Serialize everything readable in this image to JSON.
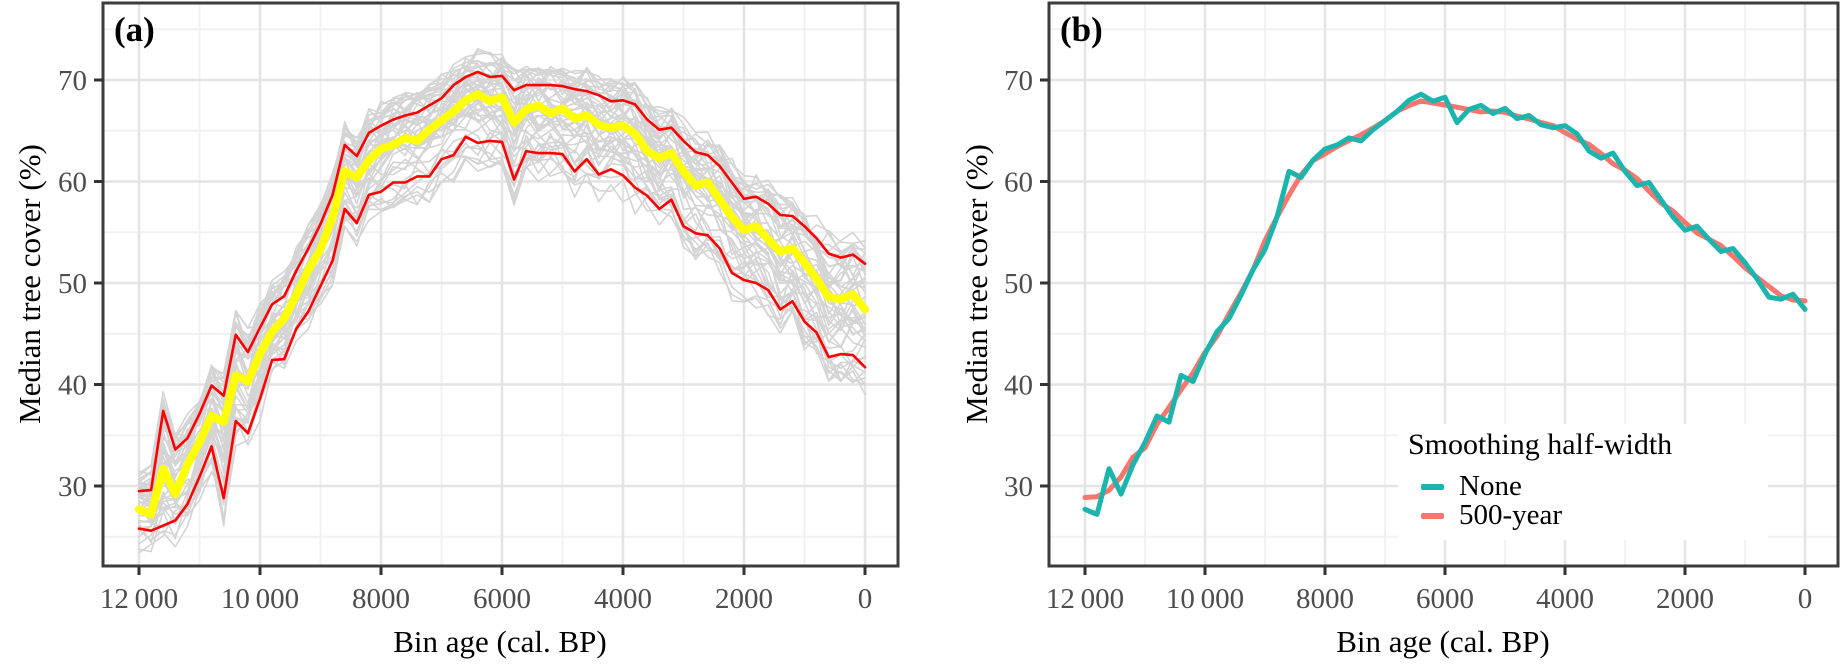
{
  "panels": {
    "a": {
      "label": "(a)"
    },
    "b": {
      "label": "(b)"
    }
  },
  "axes": {
    "y_title": "Median tree cover (%)",
    "x_title": "Bin age (cal. BP)",
    "x_ticks": [
      {
        "value": 12000,
        "label": "12 000"
      },
      {
        "value": 10000,
        "label": "10 000"
      },
      {
        "value": 8000,
        "label": "8000"
      },
      {
        "value": 6000,
        "label": "6000"
      },
      {
        "value": 4000,
        "label": "4000"
      },
      {
        "value": 2000,
        "label": "2000"
      },
      {
        "value": 0,
        "label": "0"
      }
    ],
    "y_ticks": [
      30,
      40,
      50,
      60,
      70
    ],
    "y_minor": [
      25,
      35,
      45,
      55,
      65,
      75
    ],
    "x_minor": [
      11000,
      9000,
      7000,
      5000,
      3000,
      1000
    ]
  },
  "legend": {
    "title": "Smoothing half-width",
    "items": [
      {
        "label": "None",
        "color": "#1CB5AD"
      },
      {
        "label": "500-year",
        "color": "#F8766D"
      }
    ]
  },
  "colors": {
    "median": "#FFFF00",
    "envelope": "#FF0000",
    "ensemble": "#D4D4D4",
    "raw": "#1CB5AD",
    "smoothed": "#F8766D",
    "grid_major": "#E4E4E4",
    "grid_minor": "#F1F1F1",
    "panel_border": "#3C3C3C",
    "tick_mark": "#333333",
    "tick_text": "#4D4D4D"
  },
  "chart_data": [
    {
      "type": "line",
      "panel": "a",
      "title": "(a)",
      "xlabel": "Bin age (cal. BP)",
      "ylabel": "Median tree cover (%)",
      "x_axis_reversed": true,
      "xlim": [
        12600,
        -550
      ],
      "ylim": [
        22.3,
        77.6
      ],
      "grid": true,
      "bin_ages": [
        12000,
        11800,
        11600,
        11400,
        11200,
        11000,
        10800,
        10600,
        10400,
        10200,
        10000,
        9800,
        9600,
        9400,
        9200,
        9000,
        8800,
        8600,
        8400,
        8200,
        8000,
        7800,
        7600,
        7400,
        7200,
        7000,
        6800,
        6600,
        6400,
        6200,
        6000,
        5800,
        5600,
        5400,
        5200,
        5000,
        4800,
        4600,
        4400,
        4200,
        4000,
        3800,
        3600,
        3400,
        3200,
        3000,
        2800,
        2600,
        2400,
        2200,
        2000,
        1800,
        1600,
        1400,
        1200,
        1000,
        800,
        600,
        400,
        200,
        0
      ],
      "series": [
        {
          "name": "median",
          "color": "#FFFF00",
          "values": [
            27.7,
            27.2,
            31.7,
            29.2,
            32.1,
            34.3,
            36.9,
            36.3,
            40.9,
            40.3,
            43.0,
            45.2,
            46.5,
            48.8,
            51.3,
            53.3,
            56.5,
            61.0,
            60.4,
            62.1,
            63.2,
            63.6,
            64.3,
            64.0,
            65.1,
            66.0,
            66.9,
            68.0,
            68.6,
            67.9,
            68.3,
            65.8,
            67.1,
            67.5,
            66.7,
            67.2,
            66.2,
            66.5,
            65.6,
            65.3,
            65.5,
            64.7,
            63.0,
            62.3,
            62.8,
            61.0,
            59.6,
            59.9,
            58.2,
            56.5,
            55.2,
            55.6,
            54.3,
            53.1,
            53.4,
            52.0,
            50.4,
            48.6,
            48.4,
            48.9,
            47.4
          ]
        },
        {
          "name": "upper envelope",
          "color": "#FF0000",
          "values": [
            29.5,
            29.6,
            37.4,
            33.6,
            34.7,
            37.1,
            39.9,
            38.9,
            44.9,
            43.2,
            45.6,
            47.9,
            48.7,
            51.2,
            53.4,
            55.8,
            58.7,
            63.6,
            62.5,
            64.8,
            65.5,
            66.1,
            66.5,
            66.8,
            67.5,
            68.2,
            69.5,
            70.3,
            70.8,
            70.3,
            70.4,
            69.0,
            69.5,
            69.5,
            69.5,
            69.4,
            69.1,
            68.9,
            68.5,
            67.9,
            68.0,
            67.6,
            66.1,
            65.1,
            65.3,
            64.0,
            62.9,
            62.6,
            61.5,
            59.9,
            58.3,
            58.5,
            57.8,
            56.7,
            56.6,
            55.6,
            54.4,
            52.9,
            52.5,
            52.8,
            51.9
          ]
        },
        {
          "name": "lower envelope",
          "color": "#FF0000",
          "values": [
            25.8,
            25.6,
            26.1,
            26.6,
            28.2,
            30.9,
            33.9,
            28.8,
            36.4,
            35.2,
            38.6,
            42.4,
            42.5,
            45.5,
            47.2,
            49.7,
            52.2,
            57.3,
            55.9,
            58.7,
            59.0,
            59.9,
            59.9,
            60.5,
            60.5,
            62.2,
            62.6,
            64.4,
            63.8,
            64.0,
            63.9,
            60.2,
            63.0,
            62.8,
            62.8,
            62.7,
            61.0,
            62.2,
            60.7,
            61.2,
            60.6,
            59.4,
            58.6,
            57.3,
            58.2,
            55.6,
            54.9,
            54.7,
            53.4,
            51.0,
            50.3,
            50.0,
            49.3,
            47.4,
            48.2,
            46.2,
            45.1,
            42.7,
            43.0,
            42.9,
            41.7
          ]
        }
      ],
      "ensemble": {
        "count": 50,
        "color": "#D4D4D4",
        "note": "gray iteration lines filling band between envelopes"
      }
    },
    {
      "type": "line",
      "panel": "b",
      "title": "(b)",
      "xlabel": "Bin age (cal. BP)",
      "ylabel": "Median tree cover (%)",
      "x_axis_reversed": true,
      "xlim": [
        12600,
        -550
      ],
      "ylim": [
        22.3,
        77.6
      ],
      "grid": true,
      "legend_title": "Smoothing half-width",
      "legend_position": "inside lower right",
      "bin_ages": [
        12000,
        11800,
        11600,
        11400,
        11200,
        11000,
        10800,
        10600,
        10400,
        10200,
        10000,
        9800,
        9600,
        9400,
        9200,
        9000,
        8800,
        8600,
        8400,
        8200,
        8000,
        7800,
        7600,
        7400,
        7200,
        7000,
        6800,
        6600,
        6400,
        6200,
        6000,
        5800,
        5600,
        5400,
        5200,
        5000,
        4800,
        4600,
        4400,
        4200,
        4000,
        3800,
        3600,
        3400,
        3200,
        3000,
        2800,
        2600,
        2400,
        2200,
        2000,
        1800,
        1600,
        1400,
        1200,
        1000,
        800,
        600,
        400,
        200,
        0
      ],
      "series": [
        {
          "name": "None",
          "color": "#1CB5AD",
          "values": [
            27.7,
            27.2,
            31.7,
            29.2,
            32.1,
            34.3,
            36.9,
            36.3,
            40.9,
            40.3,
            43.0,
            45.2,
            46.5,
            48.8,
            51.3,
            53.3,
            56.5,
            61.0,
            60.4,
            62.1,
            63.2,
            63.6,
            64.3,
            64.0,
            65.1,
            66.0,
            66.9,
            68.0,
            68.6,
            67.9,
            68.3,
            65.8,
            67.1,
            67.5,
            66.7,
            67.2,
            66.2,
            66.5,
            65.6,
            65.3,
            65.5,
            64.7,
            63.0,
            62.3,
            62.8,
            61.0,
            59.6,
            59.9,
            58.2,
            56.5,
            55.2,
            55.6,
            54.3,
            53.1,
            53.4,
            52.0,
            50.4,
            48.6,
            48.4,
            48.9,
            47.4
          ]
        },
        {
          "name": "500-year",
          "color": "#F8766D",
          "derived": "centered moving average of the None series over 5 bins (±500 yr)"
        }
      ]
    }
  ]
}
